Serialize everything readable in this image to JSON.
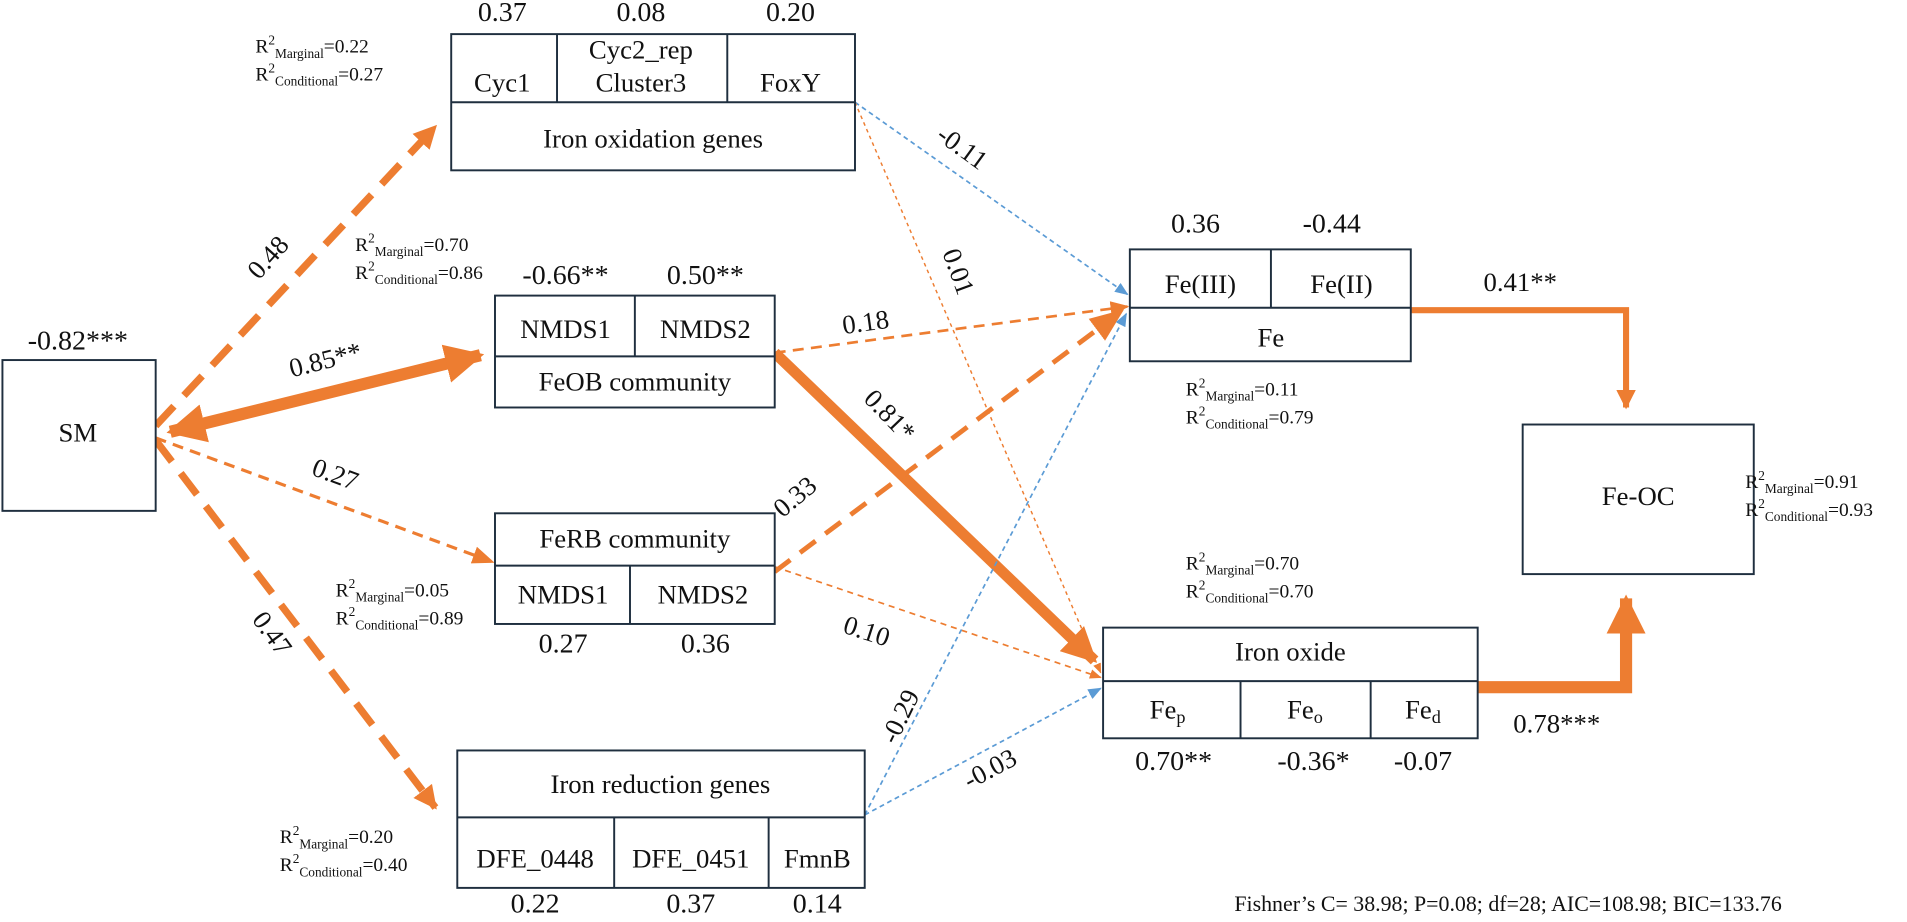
{
  "r2_text": {
    "r": "R",
    "sup": "2",
    "marginal": "Marginal",
    "conditional": "Conditional"
  },
  "nodes": {
    "sm": {
      "label": "SM",
      "value": "-0.82***"
    },
    "iron_oxidation": {
      "label": "Iron oxidation genes",
      "cells": [
        {
          "label": "Cyc1",
          "value": "0.37"
        },
        {
          "label": [
            "Cyc2_rep",
            "Cluster3"
          ],
          "value": "0.08"
        },
        {
          "label": "FoxY",
          "value": "0.20"
        }
      ],
      "r2": {
        "marginal": "=0.22",
        "conditional": "=0.27"
      }
    },
    "feob": {
      "label": "FeOB community",
      "cells": [
        {
          "label": "NMDS1",
          "value": "-0.66**"
        },
        {
          "label": "NMDS2",
          "value": "0.50**"
        }
      ],
      "r2": {
        "marginal": "=0.70",
        "conditional": "=0.86"
      }
    },
    "ferb": {
      "label": "FeRB community",
      "cells": [
        {
          "label": "NMDS1",
          "value": "0.27"
        },
        {
          "label": "NMDS2",
          "value": "0.36"
        }
      ],
      "r2": {
        "marginal": "=0.05",
        "conditional": "=0.89"
      }
    },
    "iron_reduction": {
      "label": "Iron reduction genes",
      "cells": [
        {
          "label": "DFE_0448",
          "value": "0.22"
        },
        {
          "label": "DFE_0451",
          "value": "0.37"
        },
        {
          "label": "FmnB",
          "value": "0.14"
        }
      ],
      "r2": {
        "marginal": "=0.20",
        "conditional": "=0.40"
      }
    },
    "fe": {
      "label": "Fe",
      "cells": [
        {
          "label": "Fe(III)",
          "value": "0.36"
        },
        {
          "label": "Fe(II)",
          "value": "-0.44"
        }
      ],
      "r2": {
        "marginal": "=0.11",
        "conditional": "=0.79"
      }
    },
    "iron_oxide": {
      "label": "Iron oxide",
      "cells": [
        {
          "label": {
            "base": "Fe",
            "sub": "p"
          },
          "value": "0.70**"
        },
        {
          "label": {
            "base": "Fe",
            "sub": "o"
          },
          "value": "-0.36*"
        },
        {
          "label": {
            "base": "Fe",
            "sub": "d"
          },
          "value": "-0.07"
        }
      ],
      "r2": {
        "marginal": "=0.70",
        "conditional": "=0.70"
      }
    },
    "fe_oc": {
      "label": "Fe-OC",
      "r2": {
        "marginal": "=0.91",
        "conditional": "=0.93"
      }
    }
  },
  "path_coefficients": [
    "0.48",
    "0.85**",
    "0.27",
    "0.47",
    "-0.11",
    "0.01",
    "0.18",
    "0.81*",
    "0.33",
    "0.10",
    "-0.29",
    "-0.03",
    "0.41**",
    "0.78***"
  ],
  "footer": "Fishner’s C= 38.98; P=0.08;  df=28; AIC=108.98; BIC=133.76"
}
